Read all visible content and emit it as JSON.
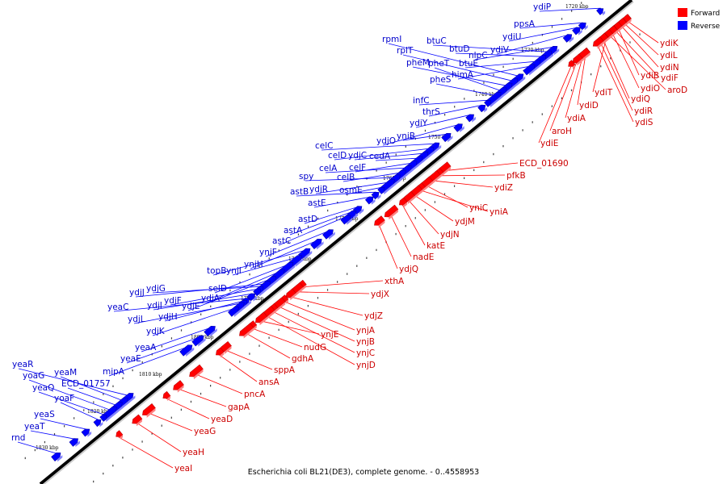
{
  "legend": {
    "forward_label": "Forward",
    "reverse_label": "Reverse",
    "forward_color": "#ff0000",
    "reverse_color": "#0000ff"
  },
  "caption": "Escherichia coli BL21(DE3), complete genome. - 0..4558953",
  "colors": {
    "forward_line": "#ff0000",
    "reverse_line": "#0000ff",
    "axis": "#000000"
  },
  "ticks": [
    "1720 kbp",
    "1730 kbp",
    "1740 kbp",
    "1750 kbp",
    "1760 kbp",
    "1770 kbp",
    "1780 kbp",
    "1790 kbp",
    "1800 kbp",
    "1810 kbp",
    "1820 kbp",
    "1830 kbp"
  ],
  "forward_genes": [
    "ydiK",
    "ydiL",
    "ydiN",
    "ydiB",
    "ydiF",
    "ydiO",
    "aroD",
    "ydiT",
    "ydiQ",
    "ydiR",
    "ydiS",
    "ydiD",
    "ydiA",
    "aroH",
    "ydiE",
    "ECD_01690",
    "pfkB",
    "ydiZ",
    "yniC",
    "yniA",
    "ydjM",
    "ydjN",
    "katE",
    "nadE",
    "ydjQ",
    "xthA",
    "ydjX",
    "ydjZ",
    "ynjA",
    "ynjB",
    "ynjC",
    "ynjD",
    "ynjE",
    "nudG",
    "gdhA",
    "sppA",
    "ansA",
    "pncA",
    "gapA",
    "yeaD",
    "yeaG",
    "yeaH",
    "yeaI"
  ],
  "reverse_genes": [
    "ydiP",
    "ppsA",
    "ydiU",
    "ydiV",
    "nlpC",
    "btuC",
    "btuD",
    "btuE",
    "himA",
    "rpmI",
    "rplT",
    "pheM",
    "pheT",
    "pheS",
    "infC",
    "thrS",
    "ydiY",
    "ydjO",
    "yniB",
    "celC",
    "celD",
    "ydjC",
    "cedA",
    "celF",
    "celA",
    "celB",
    "spy",
    "ydjR",
    "osmE",
    "astB",
    "astE",
    "astD",
    "astA",
    "astC",
    "ynjF",
    "ynjH",
    "topB",
    "ynjI",
    "selD",
    "ydjA",
    "ydjE",
    "ydjJ",
    "ydjG",
    "ydjF",
    "ydjI",
    "yeaC",
    "ydjH",
    "ydjL",
    "ydjK",
    "yeaA",
    "yeaE",
    "mipA",
    "yeaR",
    "yeaM",
    "ECD_01757",
    "yoaG",
    "yeaQ",
    "yoaF",
    "yeaS",
    "yeaT",
    "rnd"
  ]
}
